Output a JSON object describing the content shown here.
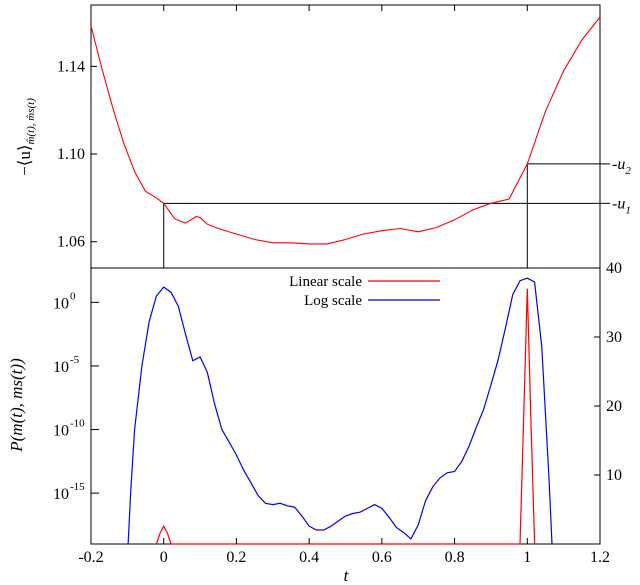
{
  "chart_data": [
    {
      "type": "line",
      "panel": "top",
      "ylabel_main": "−⟨u⟩",
      "ylabel_sub": "m̂(t), m̂s(t)",
      "xlim": [
        -0.2,
        1.2
      ],
      "ylim": [
        1.048,
        1.168
      ],
      "yticks": [
        1.06,
        1.1,
        1.14
      ],
      "ytick_labels": [
        "1.06",
        "1.10",
        "1.14"
      ],
      "right_labels": [
        {
          "text": "-u",
          "sub": "2",
          "value": 1.0955
        },
        {
          "text": "-u",
          "sub": "1",
          "value": 1.0775
        }
      ],
      "color": "#ff0000",
      "series": [
        {
          "x": [
            -0.2,
            -0.17,
            -0.14,
            -0.11,
            -0.08,
            -0.05,
            -0.02,
            0.0,
            0.03,
            0.06,
            0.09,
            0.1,
            0.12,
            0.15,
            0.2,
            0.25,
            0.3,
            0.35,
            0.4,
            0.45,
            0.5,
            0.55,
            0.6,
            0.65,
            0.7,
            0.75,
            0.8,
            0.85,
            0.9,
            0.95,
            1.0,
            1.05,
            1.1,
            1.15,
            1.2
          ],
          "y": [
            1.1585,
            1.139,
            1.121,
            1.105,
            1.092,
            1.083,
            1.08,
            1.0775,
            1.0705,
            1.0685,
            1.0715,
            1.071,
            1.068,
            1.066,
            1.0635,
            1.061,
            1.0595,
            1.0595,
            1.059,
            1.059,
            1.061,
            1.0635,
            1.065,
            1.066,
            1.0645,
            1.0665,
            1.07,
            1.0745,
            1.0775,
            1.0795,
            1.0955,
            1.1195,
            1.138,
            1.152,
            1.1625
          ]
        }
      ],
      "guides": [
        {
          "x0": 0.0,
          "x1": 1.0,
          "y": 1.0775,
          "right_extend": true
        },
        {
          "x0": 1.0,
          "x1": 1.0,
          "y": 1.0955,
          "right_extend": true
        }
      ]
    },
    {
      "type": "line",
      "panel": "bottom",
      "xlabel": "t",
      "ylabel": "P(m(t), ms(t))",
      "xlim": [
        -0.2,
        1.2
      ],
      "xticks": [
        -0.2,
        0,
        0.2,
        0.4,
        0.6,
        0.8,
        1,
        1.2
      ],
      "xtick_labels": [
        "-0.2",
        "0",
        "0.2",
        "0.4",
        "0.6",
        "0.8",
        "1",
        "1.2"
      ],
      "left_axis": {
        "scale": "log",
        "exp_range": [
          -19,
          2.7
        ],
        "ticks": [
          {
            "base": "10",
            "exp": "0",
            "value": 0
          },
          {
            "base": "10",
            "exp": "-5",
            "value": -5
          },
          {
            "base": "10",
            "exp": "-10",
            "value": -10
          },
          {
            "base": "10",
            "exp": "-15",
            "value": -15
          }
        ]
      },
      "right_axis": {
        "scale": "linear",
        "range": [
          0,
          40
        ],
        "ticks": [
          10,
          20,
          30,
          40
        ],
        "tick_labels": [
          "10",
          "20",
          "30",
          "40"
        ]
      },
      "legend": {
        "placement": "top-center",
        "entries": [
          {
            "label": "Linear scale",
            "color": "#ff0000"
          },
          {
            "label": "Log scale",
            "color": "#0000ff"
          }
        ]
      },
      "series": [
        {
          "name": "Log scale",
          "color": "#0000ff",
          "axis": "left",
          "x": [
            -0.098,
            -0.09,
            -0.08,
            -0.06,
            -0.04,
            -0.02,
            0.0,
            0.02,
            0.04,
            0.06,
            0.08,
            0.1,
            0.12,
            0.14,
            0.16,
            0.18,
            0.2,
            0.22,
            0.24,
            0.26,
            0.28,
            0.3,
            0.32,
            0.34,
            0.36,
            0.38,
            0.4,
            0.42,
            0.44,
            0.46,
            0.48,
            0.5,
            0.52,
            0.54,
            0.56,
            0.58,
            0.6,
            0.62,
            0.64,
            0.66,
            0.68,
            0.7,
            0.72,
            0.74,
            0.76,
            0.78,
            0.8,
            0.82,
            0.84,
            0.86,
            0.88,
            0.9,
            0.92,
            0.94,
            0.96,
            0.98,
            1.0,
            1.02,
            1.04,
            1.06,
            1.068
          ],
          "y": [
            -19,
            -14.5,
            -10,
            -5,
            -1.5,
            0.5,
            1.2,
            0.8,
            -0.3,
            -2.5,
            -4.6,
            -4.3,
            -5.5,
            -8,
            -10,
            -11,
            -12,
            -13.2,
            -14.2,
            -15.2,
            -15.8,
            -15.9,
            -15.8,
            -16.0,
            -16.1,
            -16.8,
            -17.6,
            -17.9,
            -17.9,
            -17.6,
            -17.2,
            -16.8,
            -16.6,
            -16.5,
            -16.2,
            -15.9,
            -16.2,
            -16.9,
            -17.7,
            -18.1,
            -18.6,
            -17.5,
            -15.6,
            -14.5,
            -13.8,
            -13.4,
            -13.3,
            -12.5,
            -11.3,
            -9.8,
            -8.4,
            -6.5,
            -4.5,
            -2,
            0.6,
            1.7,
            1.9,
            1.6,
            -3.5,
            -14,
            -19
          ]
        },
        {
          "name": "Linear scale",
          "color": "#ff0000",
          "axis": "right",
          "x": [
            -0.02,
            -0.01,
            0.0,
            0.01,
            0.02,
            0.98,
            0.99,
            1.0,
            1.01,
            1.02
          ],
          "y": [
            0,
            1.6,
            2.6,
            1.6,
            0,
            0,
            18,
            37,
            18,
            0
          ]
        }
      ]
    }
  ]
}
